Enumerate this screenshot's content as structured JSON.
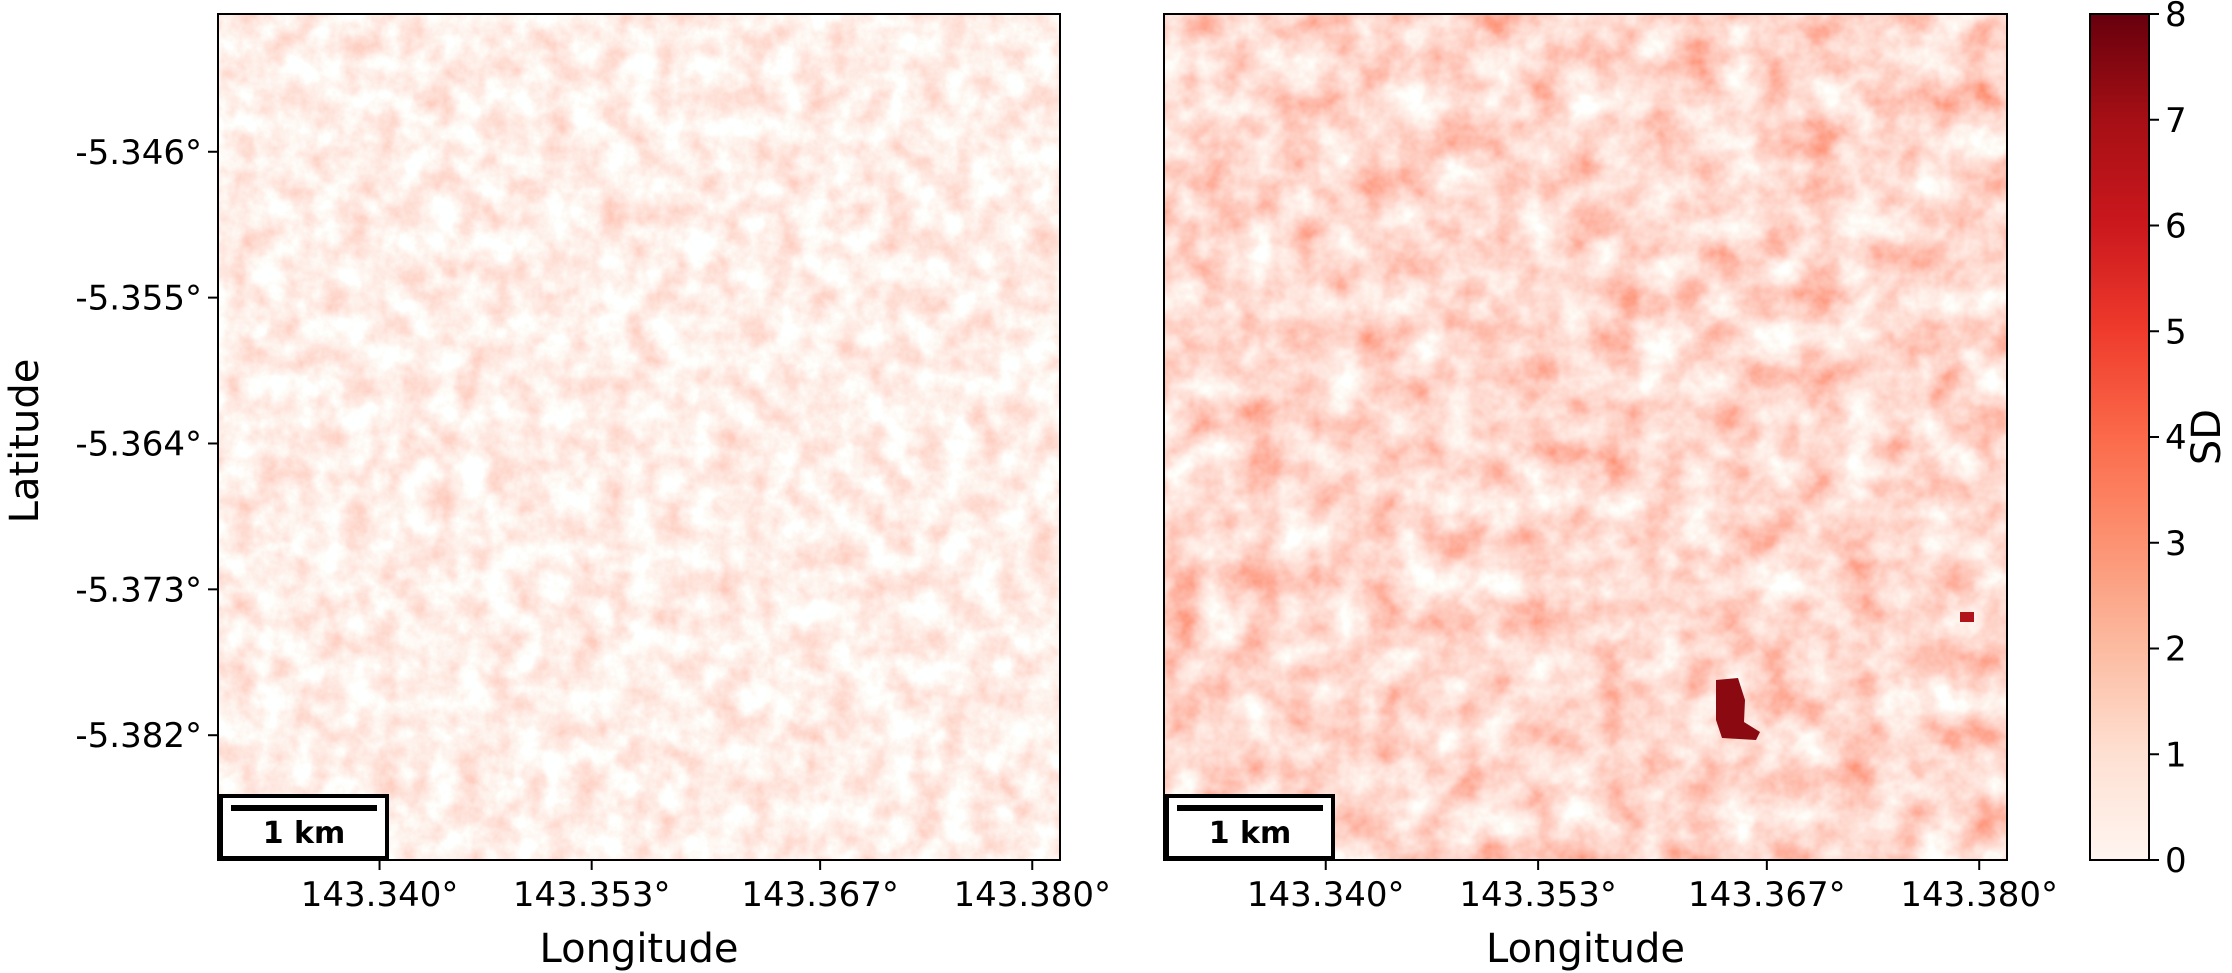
{
  "chart_data": [
    {
      "type": "heatmap",
      "xlabel": "Longitude",
      "ylabel": "Latitude",
      "xlim": [
        143.3301,
        143.3817
      ],
      "ylim": [
        -5.3897,
        -5.3375
      ],
      "xticks": [
        {
          "value": 143.34,
          "label": "143.340°"
        },
        {
          "value": 143.353,
          "label": "143.353°"
        },
        {
          "value": 143.367,
          "label": "143.367°"
        },
        {
          "value": 143.38,
          "label": "143.380°"
        }
      ],
      "yticks": [
        {
          "value": -5.346,
          "label": "-5.346°"
        },
        {
          "value": -5.355,
          "label": "-5.355°"
        },
        {
          "value": -5.364,
          "label": "-5.364°"
        },
        {
          "value": -5.373,
          "label": "-5.373°"
        },
        {
          "value": -5.382,
          "label": "-5.382°"
        }
      ],
      "scale_bar": "1 km",
      "intensity": "low"
    },
    {
      "type": "heatmap",
      "xlabel": "Longitude",
      "xlim": [
        143.3301,
        143.3817
      ],
      "ylim": [
        -5.3897,
        -5.3375
      ],
      "xticks": [
        {
          "value": 143.34,
          "label": "143.340°"
        },
        {
          "value": 143.353,
          "label": "143.353°"
        },
        {
          "value": 143.367,
          "label": "143.367°"
        },
        {
          "value": 143.38,
          "label": "143.380°"
        }
      ],
      "scale_bar": "1 km",
      "intensity": "high",
      "colorbar": {
        "label": "SD",
        "lim": [
          0,
          8
        ],
        "ticks": [
          0,
          1,
          2,
          3,
          4,
          5,
          6,
          7,
          8
        ],
        "colors": [
          "#fff5f0",
          "#fee0d2",
          "#fcbba1",
          "#fc9272",
          "#fb6a4a",
          "#ef3b2c",
          "#cb181d",
          "#a50f15",
          "#67000d"
        ]
      }
    }
  ]
}
